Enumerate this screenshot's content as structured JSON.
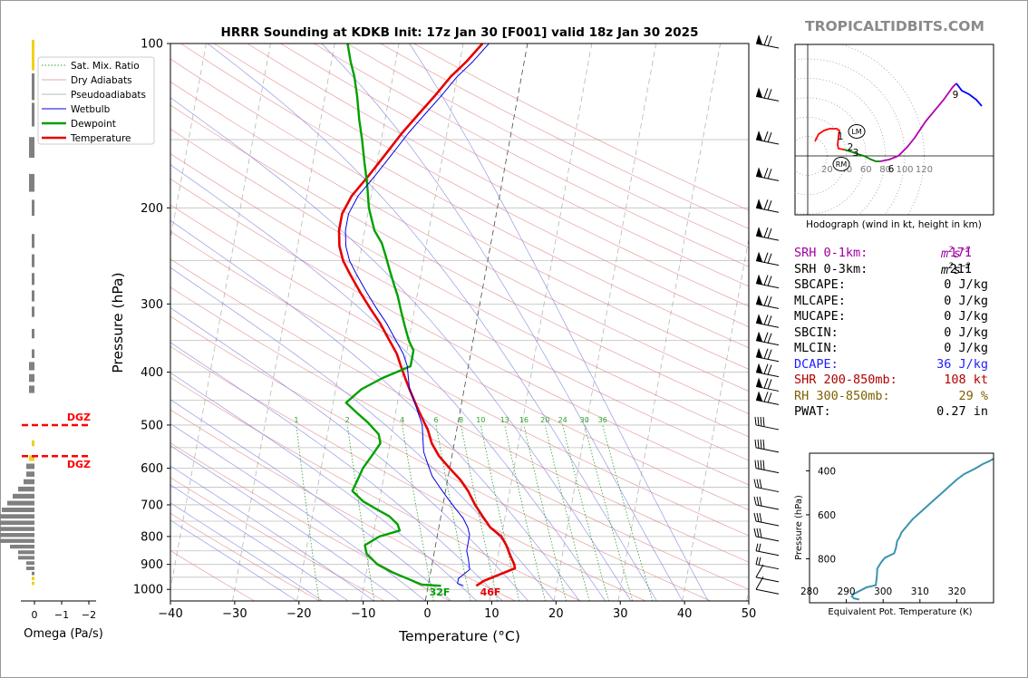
{
  "brand": "TROPICALTIDBITS.COM",
  "chart_data": [
    {
      "type": "line",
      "subtype": "skew-T log-P",
      "title": "HRRR Sounding at KDKB Init: 17z Jan 30 [F001] valid 18z Jan 30 2025",
      "xlabel": "Temperature (°C)",
      "ylabel": "Pressure (hPa)",
      "xlim": [
        -40,
        50
      ],
      "ylim": [
        1050,
        100
      ],
      "y_scale": "log",
      "x_ticks": [
        -40,
        -30,
        -20,
        -10,
        0,
        10,
        20,
        30,
        40,
        50
      ],
      "y_ticks": [
        100,
        200,
        300,
        400,
        500,
        600,
        700,
        800,
        900,
        1000
      ],
      "legend": [
        "Sat. Mix. Ratio",
        "Dry Adiabats",
        "Pseudoadiabats",
        "Wetbulb",
        "Dewpoint",
        "Temperature"
      ],
      "legend_position": "upper-left",
      "mixing_ratio_labels": [
        "1",
        "2",
        "4",
        "6",
        "8",
        "10",
        "13",
        "16",
        "20",
        "24",
        "30",
        "36"
      ],
      "surface_labels": {
        "dewpoint": "32F",
        "temperature": "46F"
      },
      "colors": {
        "temperature": "#e60000",
        "dewpoint": "#00a000",
        "wetbulb": "#0000e6",
        "mixing_ratio": "#2ca02c",
        "dry_adiabat": "#e08080",
        "moist_adiabat": "#8080e0"
      },
      "series": [
        {
          "name": "Temperature",
          "points": [
            [
              7.5,
              985
            ],
            [
              8.5,
              965
            ],
            [
              13,
              915
            ],
            [
              12.8,
              900
            ],
            [
              12,
              870
            ],
            [
              11,
              830
            ],
            [
              10,
              800
            ],
            [
              8,
              770
            ],
            [
              6.5,
              735
            ],
            [
              5,
              700
            ],
            [
              3.5,
              660
            ],
            [
              2,
              630
            ],
            [
              0,
              600
            ],
            [
              -2,
              570
            ],
            [
              -3.5,
              540
            ],
            [
              -4.5,
              510
            ],
            [
              -5.5,
              490
            ],
            [
              -6.5,
              470
            ],
            [
              -7.5,
              450
            ],
            [
              -8.5,
              430
            ],
            [
              -9.5,
              410
            ],
            [
              -10.5,
              390
            ],
            [
              -11.5,
              370
            ],
            [
              -13,
              350
            ],
            [
              -15,
              325
            ],
            [
              -17,
              305
            ],
            [
              -19,
              285
            ],
            [
              -21,
              265
            ],
            [
              -22.5,
              250
            ],
            [
              -23.5,
              235
            ],
            [
              -24,
              220
            ],
            [
              -24,
              205
            ],
            [
              -23,
              190
            ],
            [
              -21,
              175
            ],
            [
              -19,
              160
            ],
            [
              -17,
              146
            ],
            [
              -15,
              135
            ],
            [
              -13,
              125
            ],
            [
              -11,
              115
            ],
            [
              -9,
              108
            ],
            [
              -7,
              100
            ]
          ]
        },
        {
          "name": "Dewpoint",
          "points": [
            [
              2,
              985
            ],
            [
              -1,
              980
            ],
            [
              -2,
              970
            ],
            [
              -3.5,
              955
            ],
            [
              -6,
              930
            ],
            [
              -8.5,
              900
            ],
            [
              -10.5,
              860
            ],
            [
              -11,
              830
            ],
            [
              -9,
              800
            ],
            [
              -6,
              780
            ],
            [
              -6.5,
              760
            ],
            [
              -8,
              735
            ],
            [
              -10,
              715
            ],
            [
              -12.5,
              690
            ],
            [
              -14.5,
              660
            ],
            [
              -14,
              630
            ],
            [
              -13.5,
              600
            ],
            [
              -12.5,
              570
            ],
            [
              -11.5,
              540
            ],
            [
              -12,
              520
            ],
            [
              -14,
              495
            ],
            [
              -16,
              475
            ],
            [
              -18,
              455
            ],
            [
              -16,
              430
            ],
            [
              -13,
              410
            ],
            [
              -9,
              390
            ],
            [
              -9,
              365
            ],
            [
              -10,
              350
            ],
            [
              -11,
              330
            ],
            [
              -12,
              310
            ],
            [
              -13,
              290
            ],
            [
              -14,
              275
            ],
            [
              -15,
              260
            ],
            [
              -16,
              245
            ],
            [
              -17,
              232
            ],
            [
              -18.5,
              220
            ],
            [
              -20,
              200
            ],
            [
              -21,
              180
            ],
            [
              -22,
              165
            ],
            [
              -23,
              150
            ],
            [
              -24,
              138
            ],
            [
              -25,
              125
            ],
            [
              -26,
              115
            ],
            [
              -27,
              108
            ],
            [
              -28,
              100
            ]
          ]
        },
        {
          "name": "Wetbulb",
          "points": [
            [
              5.5,
              985
            ],
            [
              4.5,
              975
            ],
            [
              4.5,
              955
            ],
            [
              6,
              920
            ],
            [
              5.5,
              880
            ],
            [
              5,
              850
            ],
            [
              5,
              820
            ],
            [
              5,
              795
            ],
            [
              4.5,
              770
            ],
            [
              3.5,
              740
            ],
            [
              2,
              710
            ],
            [
              0.5,
              680
            ],
            [
              -1,
              650
            ],
            [
              -2.5,
              620
            ],
            [
              -3.5,
              590
            ],
            [
              -4.5,
              560
            ],
            [
              -5,
              530
            ],
            [
              -5.5,
              500
            ],
            [
              -6.5,
              475
            ],
            [
              -7.5,
              450
            ],
            [
              -8.5,
              430
            ],
            [
              -9,
              410
            ],
            [
              -9.5,
              390
            ],
            [
              -10.5,
              370
            ],
            [
              -12,
              350
            ],
            [
              -14,
              325
            ],
            [
              -16,
              305
            ],
            [
              -18,
              285
            ],
            [
              -20,
              265
            ],
            [
              -21.5,
              250
            ],
            [
              -22.5,
              235
            ],
            [
              -23,
              220
            ],
            [
              -23,
              205
            ],
            [
              -22,
              190
            ],
            [
              -20,
              175
            ],
            [
              -18,
              160
            ],
            [
              -16,
              146
            ],
            [
              -14,
              135
            ],
            [
              -12,
              125
            ],
            [
              -10,
              115
            ],
            [
              -8,
              108
            ],
            [
              -6,
              100
            ]
          ]
        }
      ]
    },
    {
      "type": "bar",
      "subtype": "omega profile",
      "xlabel": "Omega (Pa/s)",
      "x_ticks": [
        "0",
        "−1",
        "−2"
      ],
      "annotations": [
        "DGZ",
        "DGZ"
      ],
      "values_approx": [
        [
          0.1,
          975
        ],
        [
          0.1,
          955
        ],
        [
          0.1,
          935
        ],
        [
          0.3,
          915
        ],
        [
          0.3,
          895
        ],
        [
          0.6,
          875
        ],
        [
          0.6,
          855
        ],
        [
          0.9,
          835
        ],
        [
          1.3,
          815
        ],
        [
          1.4,
          795
        ],
        [
          1.5,
          775
        ],
        [
          1.5,
          755
        ],
        [
          1.4,
          735
        ],
        [
          1.2,
          715
        ],
        [
          1.0,
          695
        ],
        [
          0.8,
          675
        ],
        [
          0.6,
          655
        ],
        [
          0.4,
          635
        ],
        [
          0.3,
          615
        ],
        [
          0.3,
          595
        ],
        [
          0.2,
          575
        ],
        [
          0.1,
          540
        ],
        [
          0.2,
          430
        ],
        [
          0.2,
          410
        ],
        [
          0.2,
          390
        ],
        [
          0.1,
          370
        ],
        [
          0.1,
          340
        ],
        [
          0.1,
          310
        ],
        [
          0.1,
          290
        ],
        [
          0.1,
          270
        ],
        [
          0.1,
          250
        ],
        [
          0.1,
          230
        ],
        [
          0.1,
          200
        ],
        [
          0.2,
          180
        ],
        [
          0.2,
          155
        ],
        [
          0.1,
          135
        ],
        [
          0.1,
          120
        ],
        [
          0.1,
          105
        ]
      ]
    },
    {
      "type": "line",
      "subtype": "hodograph",
      "title": "Hodograph (wind in kt, height in km)",
      "ring_labels": [
        "20",
        "40",
        "60",
        "80",
        "100",
        "120"
      ],
      "markers": [
        "LM",
        "RM"
      ],
      "height_labels": [
        "1",
        "2",
        "3",
        "6",
        "9"
      ],
      "colors": [
        "#ff0000",
        "#008000",
        "#b000b0",
        "#0000ff"
      ]
    },
    {
      "type": "line",
      "subtype": "equivalent potential temperature profile",
      "xlabel": "Equivalent Pot. Temperature (K)",
      "ylabel": "Pressure (hPa)",
      "x_ticks": [
        280,
        290,
        300,
        310,
        320
      ],
      "y_ticks": [
        400,
        600,
        800
      ],
      "xlim": [
        280,
        330
      ],
      "ylim": [
        1000,
        320
      ],
      "color": "#3a94b0",
      "points": [
        [
          293.5,
          985
        ],
        [
          292,
          980
        ],
        [
          291.5,
          970
        ],
        [
          292,
          960
        ],
        [
          295.5,
          930
        ],
        [
          298,
          920
        ],
        [
          298.3,
          880
        ],
        [
          298.4,
          845
        ],
        [
          299.5,
          815
        ],
        [
          300.5,
          795
        ],
        [
          303,
          775
        ],
        [
          303.5,
          750
        ],
        [
          303.8,
          720
        ],
        [
          304.5,
          700
        ],
        [
          305,
          680
        ],
        [
          308,
          620
        ],
        [
          311,
          575
        ],
        [
          314,
          530
        ],
        [
          316,
          500
        ],
        [
          318,
          470
        ],
        [
          320,
          440
        ],
        [
          322,
          415
        ],
        [
          325,
          390
        ],
        [
          327,
          370
        ],
        [
          329,
          355
        ],
        [
          331,
          335
        ],
        [
          333,
          322
        ]
      ]
    }
  ],
  "indices": [
    {
      "label": "SRH 0-1km:",
      "value": "171",
      "unit_base": "m",
      "unit_sup1": "2",
      "unit_mid": "s",
      "unit_sup2": "−2",
      "color": "#a000a0"
    },
    {
      "label": "SRH 0-3km:",
      "value": "211",
      "unit_base": "m",
      "unit_sup1": "2",
      "unit_mid": "s",
      "unit_sup2": "−2",
      "color": "#000000"
    },
    {
      "label": "SBCAPE:",
      "value": "0 J/kg",
      "color": "#000000"
    },
    {
      "label": "MLCAPE:",
      "value": "0 J/kg",
      "color": "#000000"
    },
    {
      "label": "MUCAPE:",
      "value": "0 J/kg",
      "color": "#000000"
    },
    {
      "label": "SBCIN:",
      "value": "0 J/kg",
      "color": "#000000"
    },
    {
      "label": "MLCIN:",
      "value": "0 J/kg",
      "color": "#000000"
    },
    {
      "label": "DCAPE:",
      "value": "36 J/kg",
      "color": "#2020ff"
    },
    {
      "label": "SHR 200-850mb:",
      "value": "108 kt",
      "color": "#b00000"
    },
    {
      "label": "RH 300-850mb:",
      "value": "29 %",
      "color": "#806000"
    },
    {
      "label": "PWAT:",
      "value": "0.27 in",
      "color": "#000000"
    }
  ]
}
